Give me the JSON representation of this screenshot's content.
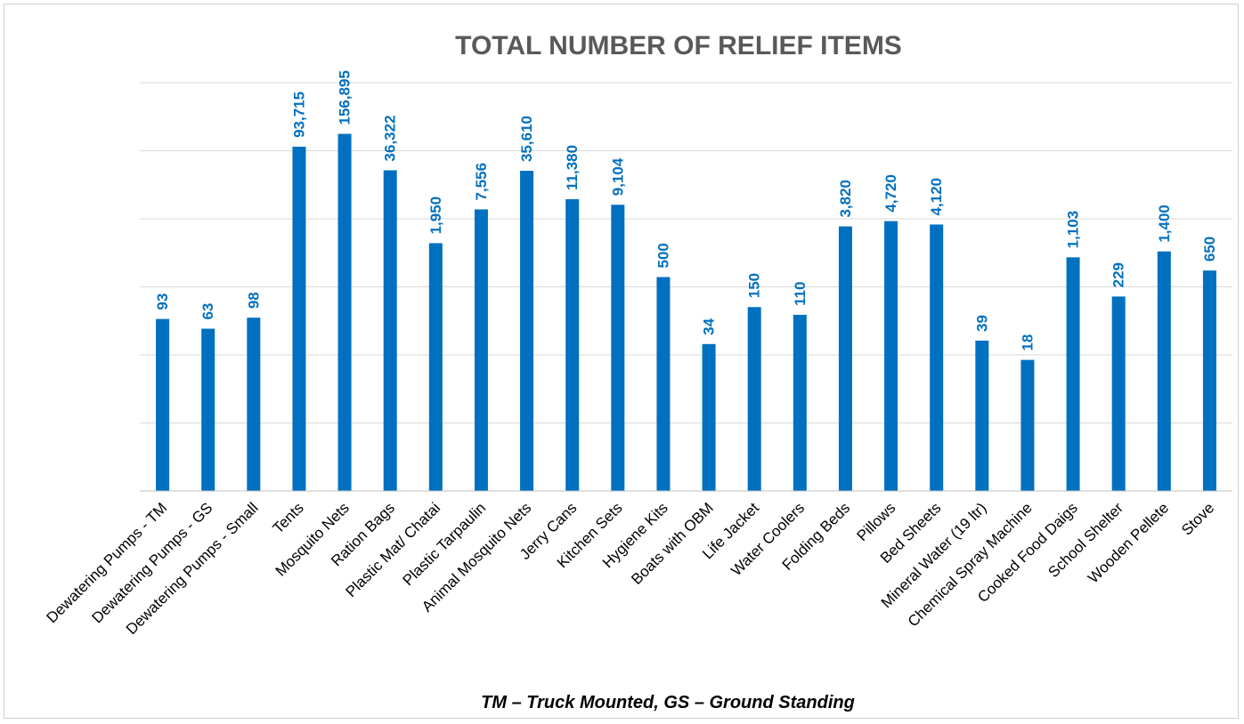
{
  "chart_data": {
    "type": "bar",
    "title": "TOTAL NUMBER OF RELIEF ITEMS",
    "footnote": "TM – Truck Mounted, GS – Ground Standing",
    "xlabel": "",
    "ylabel": "",
    "scale": "log",
    "grid": true,
    "legend": "none",
    "bar_color": "#0070c0",
    "label_color": "#0070c0",
    "categories": [
      "Dewatering Pumps - TM",
      "Dewatering Pumps - GS",
      "Dewatering Pumps - Small",
      "Tents",
      "Mosquito Nets",
      "Ration Bags",
      "Plastic Mat/ Chatai",
      "Plastic Tarpaulin",
      "Animal Mosquito Nets",
      "Jerry Cans",
      "Kitchen Sets",
      "Hygiene Kits",
      "Boats with OBM",
      "Life Jacket",
      "Water Coolers",
      "Folding Beds",
      "Pillows",
      "Bed Sheets",
      "Mineral Water (19 ltr)",
      "Chemical Spray Machine",
      "Cooked Food Daigs",
      "School Shelter",
      "Wooden Pellete",
      "Stove"
    ],
    "values": [
      93,
      63,
      98,
      93715,
      156895,
      36322,
      1950,
      7556,
      35610,
      11380,
      9104,
      500,
      34,
      150,
      110,
      3820,
      4720,
      4120,
      39,
      18,
      1103,
      229,
      1400,
      650
    ],
    "data_labels": [
      "93",
      "63",
      "98",
      "93,715",
      "156,895",
      "36,322",
      "1,950",
      "7,556",
      "35,610",
      "11,380",
      "9,104",
      "500",
      "34",
      "150",
      "110",
      "3,820",
      "4,720",
      "4,120",
      "39",
      "18",
      "1,103",
      "229",
      "1,400",
      "650"
    ]
  }
}
